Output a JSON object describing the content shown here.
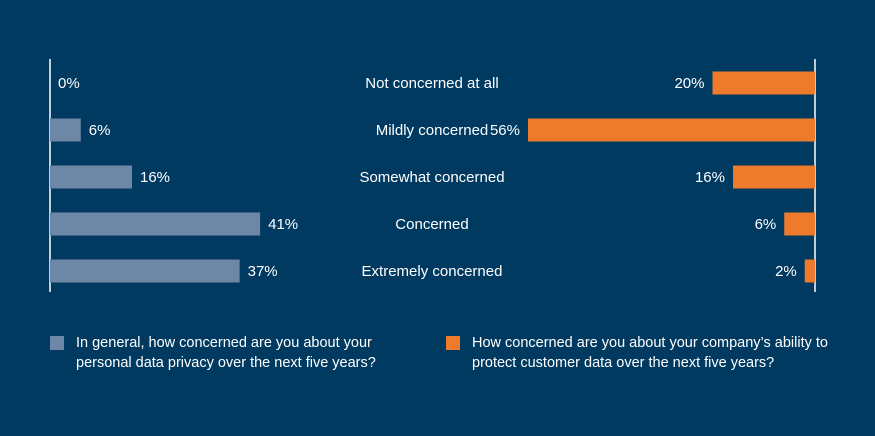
{
  "colors": {
    "background": "#003a61",
    "left_series": "#6f87a6",
    "right_series": "#ee7a2b",
    "text": "#ffffff"
  },
  "chart_data": {
    "type": "bar",
    "layout": "back-to-back horizontal bars",
    "categories": [
      "Not concerned at all",
      "Mildly concerned",
      "Somewhat concerned",
      "Concerned",
      "Extremely concerned"
    ],
    "series": [
      {
        "name": "In general, how concerned are you about your personal data privacy over the next five years?",
        "values": [
          0,
          6,
          16,
          41,
          37
        ],
        "labels": [
          "0%",
          "6%",
          "16%",
          "41%",
          "37%"
        ],
        "side": "left"
      },
      {
        "name": "How concerned are you about your company’s ability to protect customer data over the next five years?",
        "values": [
          20,
          56,
          16,
          6,
          2
        ],
        "labels": [
          "20%",
          "56%",
          "16%",
          "6%",
          "2%"
        ],
        "side": "right"
      }
    ],
    "xlim": [
      0,
      56
    ],
    "legend_position": "bottom"
  }
}
